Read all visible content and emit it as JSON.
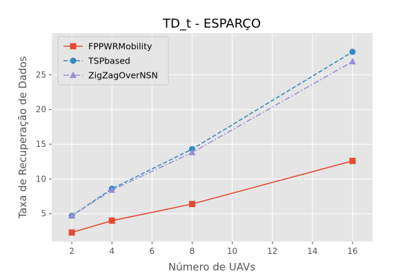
{
  "chart_data": {
    "type": "line",
    "title": "TD_t - ESPARÇO",
    "xlabel": "Número de UAVs",
    "ylabel": "Taxa de Recuperação de Dados",
    "x": [
      2,
      4,
      8,
      16
    ],
    "xlim": [
      1,
      17
    ],
    "ylim": [
      1,
      31
    ],
    "xticks": [
      2,
      4,
      6,
      8,
      10,
      12,
      14,
      16
    ],
    "yticks": [
      5,
      10,
      15,
      20,
      25
    ],
    "grid": true,
    "legend_position": "top-left",
    "series": [
      {
        "name": "FPPWRMobility",
        "values": [
          2.3,
          4.0,
          6.4,
          12.6
        ],
        "color": "#e24a33",
        "marker": "square",
        "linestyle": "solid"
      },
      {
        "name": "TSPbased",
        "values": [
          4.7,
          8.6,
          14.3,
          28.3
        ],
        "color": "#348abd",
        "marker": "circle",
        "linestyle": "dashed"
      },
      {
        "name": "ZigZagOverNSN",
        "values": [
          4.7,
          8.4,
          13.8,
          26.9
        ],
        "color": "#988ed5",
        "marker": "triangle",
        "linestyle": "dashdot"
      }
    ]
  }
}
